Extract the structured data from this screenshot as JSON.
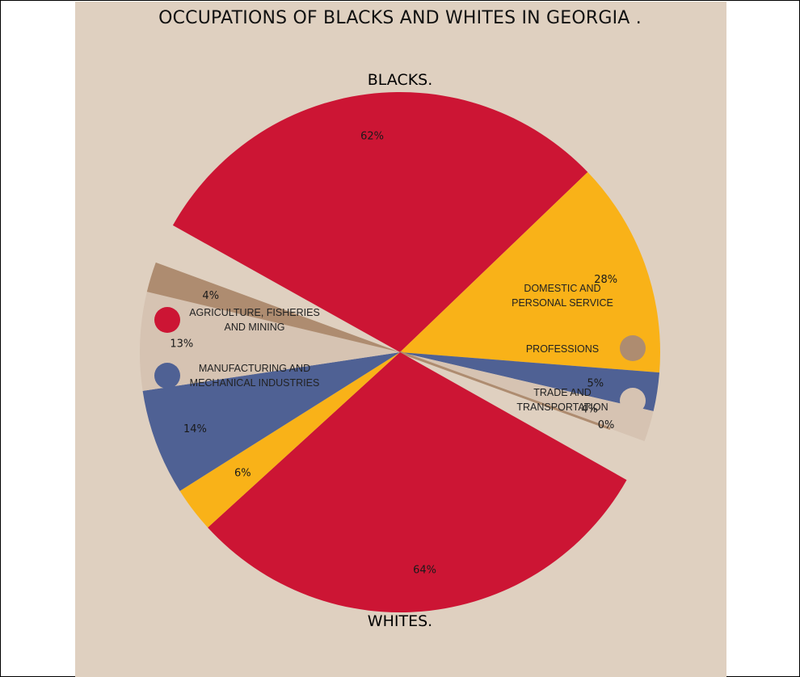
{
  "title": "OCCUPATIONS OF BLACKS AND WHITES IN GEORGIA .",
  "chart_data": [
    {
      "type": "pie",
      "name": "BLACKS.",
      "categories": [
        "AGRICULTURE, FISHERIES AND MINING",
        "DOMESTIC AND PERSONAL SERVICE",
        "MANUFACTURING AND MECHANICAL INDUSTRIES",
        "TRADE AND TRANSPORTATION",
        "PROFESSIONS"
      ],
      "values": [
        62,
        28,
        5,
        4,
        0
      ],
      "value_labels": [
        "62%",
        "28%",
        "5%",
        "4%",
        "0%"
      ]
    },
    {
      "type": "pie",
      "name": "WHITES.",
      "categories": [
        "AGRICULTURE, FISHERIES AND MINING",
        "DOMESTIC AND PERSONAL SERVICE",
        "MANUFACTURING AND MECHANICAL INDUSTRIES",
        "TRADE AND TRANSPORTATION",
        "PROFESSIONS"
      ],
      "values": [
        64,
        6,
        14,
        13,
        4
      ],
      "value_labels": [
        "64%",
        "6%",
        "14%",
        "13%",
        "4%"
      ]
    }
  ],
  "colors": {
    "agriculture": "#cc1534",
    "domestic": "#f9b218",
    "manufacturing": "#4f6194",
    "trade": "#d6c3b2",
    "professions": "#ae8c70",
    "background": "#dfd0c0"
  },
  "legend": {
    "left": [
      {
        "label_line1": "AGRICULTURE, FISHERIES",
        "label_line2": "AND MINING",
        "color": "#cc1534"
      },
      {
        "label_line1": "MANUFACTURING AND",
        "label_line2": "MECHANICAL INDUSTRIES",
        "color": "#4f6194"
      }
    ],
    "right": [
      {
        "label_line1": "DOMESTIC AND",
        "label_line2": "PERSONAL SERVICE",
        "color": "#f9b218"
      },
      {
        "label_line1": "PROFESSIONS",
        "label_line2": "",
        "color": "#ae8c70"
      },
      {
        "label_line1": "TRADE AND",
        "label_line2": "TRANSPORTATION",
        "color": "#d6c3b2"
      }
    ]
  }
}
